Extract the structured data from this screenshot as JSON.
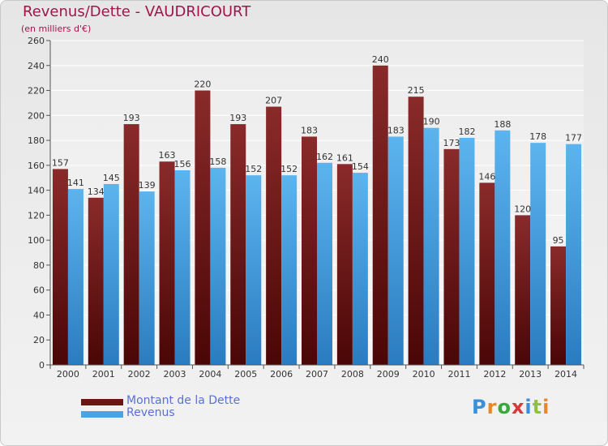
{
  "chart_data": {
    "type": "bar",
    "title": "Revenus/Dette - VAUDRICOURT",
    "subtitle": "(en milliers d'€)",
    "categories": [
      "2000",
      "2001",
      "2002",
      "2003",
      "2004",
      "2005",
      "2006",
      "2007",
      "2008",
      "2009",
      "2010",
      "2011",
      "2012",
      "2013",
      "2014"
    ],
    "series": [
      {
        "name": "Montant de la Dette",
        "color": "#7a1c1c",
        "values": [
          157,
          134,
          193,
          163,
          220,
          193,
          207,
          183,
          161,
          240,
          215,
          173,
          146,
          120,
          95
        ]
      },
      {
        "name": "Revenus",
        "color": "#4aa3e3",
        "values": [
          141,
          145,
          139,
          156,
          158,
          152,
          152,
          162,
          154,
          183,
          190,
          182,
          188,
          178,
          177
        ]
      }
    ],
    "ylim": [
      0,
      260
    ],
    "yticks": [
      0,
      20,
      40,
      60,
      80,
      100,
      120,
      140,
      160,
      180,
      200,
      220,
      240,
      260
    ],
    "grid": true
  },
  "logo": {
    "text": "Proxiti"
  }
}
